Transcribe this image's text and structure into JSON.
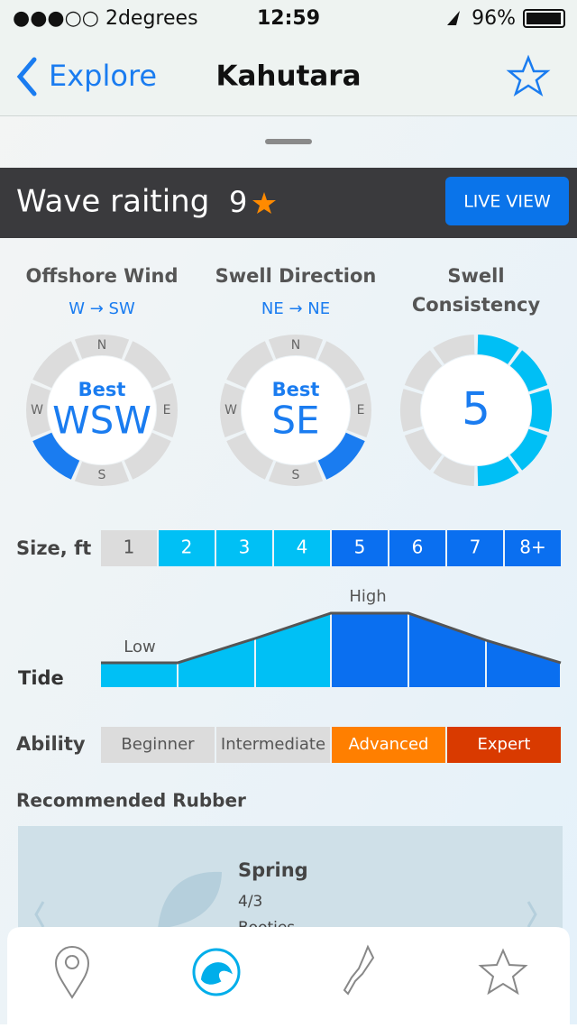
{
  "status_bar": {
    "carrier": "●●●○○ 2degrees",
    "time": "12:59",
    "battery": "96%"
  },
  "nav": {
    "back": "Explore",
    "title": "Kahutara"
  },
  "rating": {
    "label": "Wave raiting",
    "value": 9,
    "button": "LIVE VIEW"
  },
  "dials": [
    {
      "title": "Offshore Wind",
      "subtitle": "W → SW",
      "best_label": "Best",
      "best": "WSW",
      "compass": [
        "N",
        "E",
        "S",
        "W"
      ]
    },
    {
      "title": "Swell Direction",
      "subtitle": "NE → NE",
      "best_label": "Best",
      "best": "SE",
      "compass": [
        "N",
        "E",
        "S",
        "W"
      ]
    }
  ],
  "consistency": {
    "title": "Swell Consistency",
    "value": 5
  },
  "size": {
    "label": "Size, ft",
    "options": [
      "1",
      "2",
      "3",
      "4",
      "5",
      "6",
      "7",
      "8+"
    ]
  },
  "tide": {
    "label": "Tide",
    "low": "Low",
    "high": "High"
  },
  "ability": {
    "label": "Ability",
    "options": [
      "Beginner",
      "Intermediate",
      "Advanced",
      "Expert"
    ]
  },
  "rubber": {
    "title": "Recommended Rubber",
    "season": "Spring",
    "thickness": "4/3",
    "extra": "Booties"
  }
}
